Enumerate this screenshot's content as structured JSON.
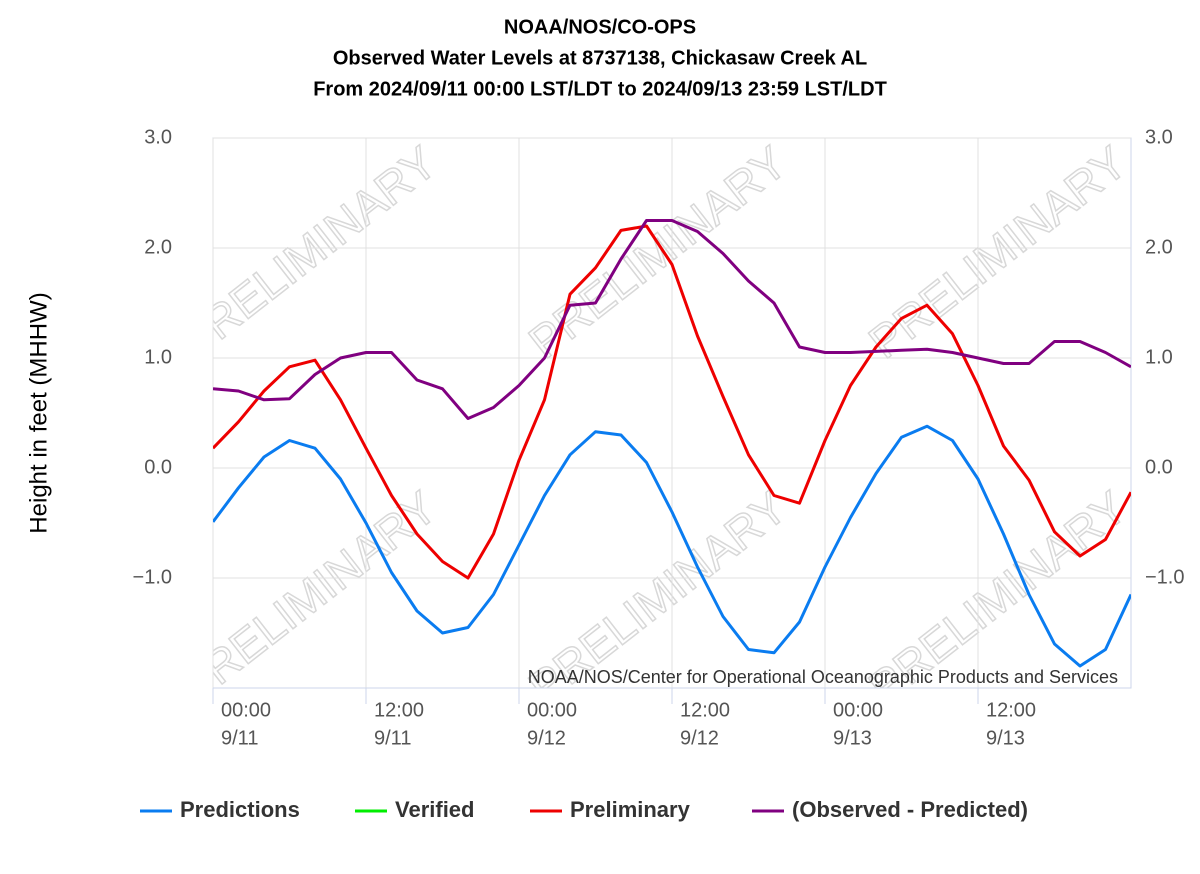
{
  "chart_data": {
    "type": "line",
    "title": [
      "NOAA/NOS/CO-OPS",
      "Observed Water Levels at 8737138, Chickasaw Creek AL",
      "From 2024/09/11 00:00 LST/LDT to 2024/09/13 23:59 LST/LDT"
    ],
    "ylabel": "Height in feet (MHHW)",
    "credit": "NOAA/NOS/Center for Operational Oceanographic Products and Services",
    "watermark": "PRELIMINARY",
    "x": [
      0,
      2,
      4,
      6,
      8,
      10,
      12,
      14,
      16,
      18,
      20,
      22,
      24,
      26,
      28,
      30,
      32,
      34,
      36,
      38,
      40,
      42,
      44,
      46,
      48,
      50,
      52,
      54,
      56,
      58,
      60,
      62,
      64,
      66,
      68,
      70,
      72
    ],
    "xlim": [
      0,
      72
    ],
    "xticks": [
      {
        "value": 0,
        "label": [
          "00:00",
          "9/11"
        ]
      },
      {
        "value": 12,
        "label": [
          "12:00",
          "9/11"
        ]
      },
      {
        "value": 24,
        "label": [
          "00:00",
          "9/12"
        ]
      },
      {
        "value": 36,
        "label": [
          "12:00",
          "9/12"
        ]
      },
      {
        "value": 48,
        "label": [
          "00:00",
          "9/13"
        ]
      },
      {
        "value": 60,
        "label": [
          "12:00",
          "9/13"
        ]
      }
    ],
    "ylim": [
      -2,
      3
    ],
    "yticks": [
      {
        "value": -1,
        "label": "−1.0"
      },
      {
        "value": 0,
        "label": "0.0"
      },
      {
        "value": 1,
        "label": "1.0"
      },
      {
        "value": 2,
        "label": "2.0"
      },
      {
        "value": 3,
        "label": "3.0"
      }
    ],
    "grid": true,
    "legend": "bottom",
    "series": [
      {
        "name": "Predictions",
        "color": "#0a7cf0",
        "values": [
          -0.49,
          -0.18,
          0.1,
          0.25,
          0.18,
          -0.1,
          -0.5,
          -0.95,
          -1.3,
          -1.5,
          -1.45,
          -1.15,
          -0.7,
          -0.25,
          0.12,
          0.33,
          0.3,
          0.05,
          -0.4,
          -0.9,
          -1.35,
          -1.65,
          -1.68,
          -1.4,
          -0.9,
          -0.45,
          -0.05,
          0.28,
          0.38,
          0.25,
          -0.1,
          -0.6,
          -1.15,
          -1.6,
          -1.8,
          -1.65,
          -1.15
        ]
      },
      {
        "name": "Verified",
        "color": "#00ee00",
        "values": [
          null,
          null,
          null,
          null,
          null,
          null,
          null,
          null,
          null,
          null,
          null,
          null,
          null,
          null,
          null,
          null,
          null,
          null,
          null,
          null,
          null,
          null,
          null,
          null,
          null,
          null,
          null,
          null,
          null,
          null,
          null,
          null,
          null,
          null,
          null,
          null,
          null
        ]
      },
      {
        "name": "Preliminary",
        "color": "#ee0000",
        "values": [
          0.18,
          0.42,
          0.7,
          0.92,
          0.98,
          0.62,
          0.18,
          -0.25,
          -0.6,
          -0.85,
          -1.0,
          -0.6,
          0.07,
          0.62,
          1.58,
          1.82,
          2.16,
          2.2,
          1.85,
          1.2,
          0.65,
          0.12,
          -0.25,
          -0.32,
          0.25,
          0.75,
          1.1,
          1.36,
          1.48,
          1.22,
          0.75,
          0.2,
          -0.11,
          -0.58,
          -0.8,
          -0.65,
          -0.22
        ]
      },
      {
        "name": "(Observed - Predicted)",
        "color": "#800080",
        "values": [
          0.72,
          0.7,
          0.62,
          0.63,
          0.85,
          1.0,
          1.05,
          1.05,
          0.8,
          0.72,
          0.45,
          0.55,
          0.75,
          1.0,
          1.48,
          1.5,
          1.9,
          2.25,
          2.25,
          2.15,
          1.95,
          1.7,
          1.5,
          1.1,
          1.05,
          1.05,
          1.06,
          1.07,
          1.08,
          1.05,
          1.0,
          0.95,
          0.95,
          1.15,
          1.15,
          1.05,
          0.92
        ]
      }
    ]
  }
}
